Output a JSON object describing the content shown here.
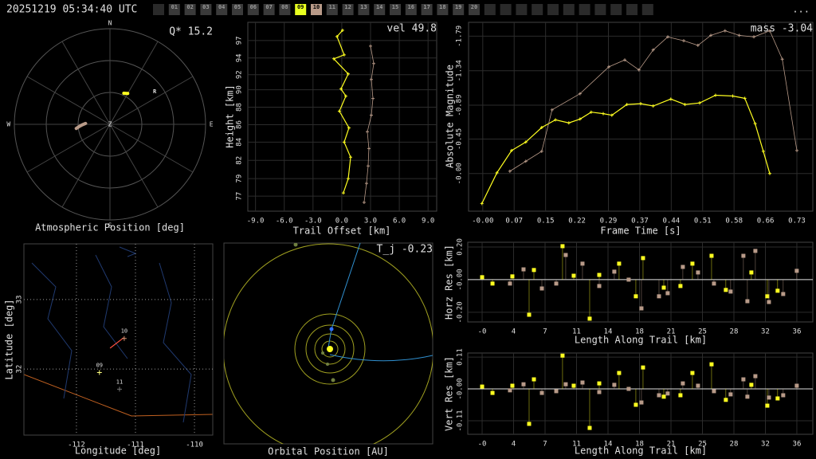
{
  "header": {
    "timestamp": "20251219 05:34:40 UTC",
    "menu": "...",
    "tabs": [
      {
        "label": "01",
        "color": "#3a3a3a"
      },
      {
        "label": "02",
        "color": "#3a3a3a"
      },
      {
        "label": "03",
        "color": "#3a3a3a"
      },
      {
        "label": "04",
        "color": "#3a3a3a"
      },
      {
        "label": "05",
        "color": "#3a3a3a"
      },
      {
        "label": "06",
        "color": "#3a3a3a"
      },
      {
        "label": "07",
        "color": "#3a3a3a"
      },
      {
        "label": "08",
        "color": "#3a3a3a"
      },
      {
        "label": "09",
        "color": "#e8ff20"
      },
      {
        "label": "10",
        "color": "#b89a88"
      },
      {
        "label": "11",
        "color": "#3a3a3a"
      },
      {
        "label": "12",
        "color": "#3a3a3a"
      },
      {
        "label": "13",
        "color": "#3a3a3a"
      },
      {
        "label": "14",
        "color": "#3a3a3a"
      },
      {
        "label": "15",
        "color": "#3a3a3a"
      },
      {
        "label": "16",
        "color": "#3a3a3a"
      },
      {
        "label": "17",
        "color": "#3a3a3a"
      },
      {
        "label": "18",
        "color": "#3a3a3a"
      },
      {
        "label": "19",
        "color": "#3a3a3a"
      },
      {
        "label": "20",
        "color": "#3a3a3a"
      }
    ]
  },
  "chart_data": [
    {
      "type": "polar",
      "title": "Atmospheric Position [deg]",
      "annotation": "Q* 15.2",
      "rlim": [
        0,
        90
      ],
      "rgrid": [
        30,
        60,
        90
      ],
      "direction_labels": [
        {
          "value": 0,
          "label": "N"
        },
        {
          "value": 90,
          "label": "E"
        },
        {
          "value": 180,
          "label": "S"
        },
        {
          "value": 270,
          "label": "W"
        }
      ],
      "center_label": "Z",
      "series": [
        {
          "color": "#ffff20",
          "azimuth": [
            24,
            26,
            28,
            30
          ],
          "zenith_angle": [
            32,
            32.5,
            33,
            33.5
          ]
        },
        {
          "color": "#b89a88",
          "azimuth": [
            263,
            266,
            269,
            272
          ],
          "zenith_angle": [
            32,
            29,
            26,
            23
          ]
        }
      ],
      "points": [
        {
          "label": "R",
          "azimuth": 54,
          "zenith_angle": 52
        }
      ]
    },
    {
      "type": "line",
      "xlabel": "Trail Offset [km]",
      "ylabel": "Height [km]",
      "annotation": "vel 49.8",
      "grid": true,
      "xlim": [
        -9.8,
        9.9
      ],
      "ylim": [
        75.1,
        98.9
      ],
      "xticks": [
        {
          "value": -9,
          "label": "-9.0"
        },
        {
          "value": -6,
          "label": "-6.0"
        },
        {
          "value": -3,
          "label": "-3.0"
        },
        {
          "value": 0,
          "label": "0.0"
        },
        {
          "value": 3,
          "label": "3.0"
        },
        {
          "value": 6,
          "label": "6.0"
        },
        {
          "value": 9,
          "label": "9.0"
        }
      ],
      "yticks": [
        77,
        {
          "value": 79.2,
          "label": "79"
        },
        {
          "value": 81.5,
          "label": "82"
        },
        {
          "value": 83.8,
          "label": "84"
        },
        {
          "value": 86.0,
          "label": "86"
        },
        {
          "value": 88.2,
          "label": "88"
        },
        {
          "value": 90.4,
          "label": "90"
        },
        {
          "value": 92.3,
          "label": "92"
        },
        {
          "value": 94.4,
          "label": "94"
        },
        {
          "value": 96.6,
          "label": "97"
        }
      ],
      "series": [
        {
          "color": "#ffff20",
          "x": [
            0.17,
            0.67,
            0.92,
            0.25,
            0.75,
            -0.25,
            0.42,
            -0.08,
            0.67,
            -0.83,
            0.25,
            -0.5,
            0.08
          ],
          "values": [
            77.4,
            79.2,
            81.9,
            83.8,
            85.6,
            87.7,
            89.6,
            90.5,
            92.4,
            94.3,
            94.8,
            97.1,
            97.9
          ]
        },
        {
          "color": "#b89a88",
          "x": [
            2.33,
            2.58,
            2.75,
            2.83,
            2.67,
            3.08,
            3.25,
            3.08,
            3.33,
            3.0
          ],
          "values": [
            76.2,
            78.6,
            80.8,
            83.0,
            85.1,
            87.2,
            89.3,
            91.7,
            93.7,
            95.9
          ]
        }
      ]
    },
    {
      "type": "line",
      "xlabel": "Frame Time [s]",
      "ylabel": "Absolute Magnitude",
      "annotation": "mass -3.04",
      "grid": true,
      "xlim": [
        -0.033,
        0.767
      ],
      "ylim": [
        0.49,
        -1.97
      ],
      "xticks": [
        {
          "value": 0,
          "label": "-0.00"
        },
        {
          "value": 0.073,
          "label": "0.07"
        },
        {
          "value": 0.146,
          "label": "0.15"
        },
        {
          "value": 0.219,
          "label": "0.22"
        },
        {
          "value": 0.292,
          "label": "0.29"
        },
        {
          "value": 0.365,
          "label": "0.37"
        },
        {
          "value": 0.438,
          "label": "0.44"
        },
        {
          "value": 0.511,
          "label": "0.51"
        },
        {
          "value": 0.584,
          "label": "0.58"
        },
        {
          "value": 0.657,
          "label": "0.66"
        },
        0.73
      ],
      "yticks": [
        -1.79,
        -1.34,
        -0.89,
        -0.45,
        {
          "value": 0,
          "label": "-0.00"
        }
      ],
      "series": [
        {
          "color": "#ffff20",
          "x": [
            -0.002,
            0.033,
            0.067,
            0.1,
            0.137,
            0.169,
            0.2,
            0.226,
            0.252,
            0.28,
            0.3,
            0.335,
            0.367,
            0.396,
            0.437,
            0.47,
            0.504,
            0.541,
            0.581,
            0.609,
            0.633,
            0.652,
            0.667
          ],
          "values": [
            0.39,
            -0.01,
            -0.3,
            -0.41,
            -0.6,
            -0.7,
            -0.66,
            -0.71,
            -0.8,
            -0.78,
            -0.76,
            -0.9,
            -0.91,
            -0.88,
            -0.97,
            -0.9,
            -0.92,
            -1.02,
            -1.01,
            -0.98,
            -0.65,
            -0.29,
            0
          ]
        },
        {
          "color": "#b89a88",
          "x": [
            0.063,
            0.1,
            0.137,
            0.161,
            0.226,
            0.293,
            0.33,
            0.363,
            0.396,
            0.43,
            0.467,
            0.5,
            0.53,
            0.563,
            0.596,
            0.63,
            0.667,
            0.696,
            0.73
          ],
          "values": [
            -0.03,
            -0.16,
            -0.29,
            -0.83,
            -1.04,
            -1.39,
            -1.48,
            -1.35,
            -1.61,
            -1.78,
            -1.73,
            -1.67,
            -1.8,
            -1.86,
            -1.8,
            -1.78,
            -1.86,
            -1.49,
            -0.3
          ]
        }
      ]
    },
    {
      "type": "map",
      "xlabel": "Longitude [deg]",
      "ylabel": "Latitude [deg]",
      "grid": true,
      "grid_style": "dotted",
      "xlim": [
        -112.89,
        -109.69
      ],
      "ylim": [
        31.05,
        33.8
      ],
      "xticks": [
        -112,
        -111,
        -110
      ],
      "yticks": [
        32,
        33
      ],
      "stations": [
        {
          "label": "09",
          "lon": -111.61,
          "lat": 31.95,
          "color": "#ffff80"
        },
        {
          "label": "10",
          "lon": -111.19,
          "lat": 32.44,
          "color": "#d09070"
        },
        {
          "label": "11",
          "lon": -111.27,
          "lat": 31.71,
          "color": "#777777"
        }
      ],
      "trail": {
        "color": "#ff5040",
        "lon": [
          -111.2,
          -111.43
        ],
        "lat": [
          32.45,
          32.3
        ]
      }
    },
    {
      "type": "orbit",
      "xlabel": "Orbital Position [AU]",
      "annotation": "T_j -0.23"
    },
    {
      "type": "stem",
      "xlabel": "Length Along Trail [km]",
      "ylabel": "Horz Res [km]",
      "grid": true,
      "xlim": [
        -1.62,
        37.3
      ],
      "ylim": [
        -0.259,
        0.229
      ],
      "xticks": [
        {
          "value": 0,
          "label": "-0"
        },
        {
          "value": 3.55,
          "label": "4"
        },
        {
          "value": 7.1,
          "label": "7"
        },
        {
          "value": 10.65,
          "label": "11"
        },
        {
          "value": 14.2,
          "label": "14"
        },
        {
          "value": 17.75,
          "label": "18"
        },
        {
          "value": 21.3,
          "label": "21"
        },
        {
          "value": 24.85,
          "label": "25"
        },
        {
          "value": 28.4,
          "label": "28"
        },
        {
          "value": 31.95,
          "label": "32"
        },
        {
          "value": 35.5,
          "label": "36"
        }
      ],
      "yticks": [
        {
          "value": 0.2,
          "label": "0.20"
        },
        {
          "value": 0,
          "label": "-0.00"
        },
        {
          "value": -0.2,
          "label": "-0.20"
        }
      ],
      "series": [
        {
          "color": "#ffff20",
          "x": [
            0,
            1.17,
            3.41,
            5.3,
            5.84,
            9.07,
            10.33,
            12.13,
            13.21,
            15.45,
            17.34,
            18.15,
            20.49,
            22.37,
            23.72,
            25.88,
            27.49,
            30.37,
            32.17,
            33.33
          ],
          "values": [
            0.015,
            -0.024,
            0.02,
            -0.215,
            0.059,
            0.205,
            0.024,
            -0.239,
            0.029,
            0.098,
            -0.102,
            0.132,
            -0.049,
            -0.039,
            0.098,
            0.146,
            -0.063,
            0.044,
            -0.102,
            -0.068
          ]
        },
        {
          "color": "#b89a88",
          "x": [
            3.14,
            4.67,
            6.74,
            8.36,
            9.43,
            11.32,
            13.21,
            14.91,
            16.53,
            17.97,
            19.95,
            20.93,
            22.64,
            24.35,
            26.15,
            28.03,
            29.47,
            29.92,
            30.82,
            32.35,
            33.96,
            35.49
          ],
          "values": [
            -0.024,
            0.063,
            -0.054,
            -0.024,
            0.151,
            0.098,
            -0.039,
            0.049,
            0,
            -0.176,
            -0.102,
            -0.083,
            0.078,
            0.044,
            -0.024,
            -0.073,
            0.146,
            -0.132,
            0.176,
            -0.137,
            -0.088,
            0.054
          ]
        }
      ]
    },
    {
      "type": "stem",
      "xlabel": "Length Along Trail [km]",
      "ylabel": "Vert Res [km]",
      "grid": true,
      "xlim": [
        -1.62,
        37.3
      ],
      "ylim": [
        -0.157,
        0.124
      ],
      "xticks": [
        {
          "value": 0,
          "label": "-0"
        },
        {
          "value": 3.55,
          "label": "4"
        },
        {
          "value": 7.1,
          "label": "7"
        },
        {
          "value": 10.65,
          "label": "11"
        },
        {
          "value": 14.2,
          "label": "14"
        },
        {
          "value": 17.75,
          "label": "18"
        },
        {
          "value": 21.3,
          "label": "21"
        },
        {
          "value": 24.85,
          "label": "25"
        },
        {
          "value": 28.4,
          "label": "28"
        },
        {
          "value": 31.95,
          "label": "32"
        },
        {
          "value": 35.5,
          "label": "36"
        }
      ],
      "yticks": [
        0.11,
        {
          "value": 0,
          "label": "-0.00"
        },
        -0.11
      ],
      "series": [
        {
          "color": "#ffff20",
          "x": [
            0,
            1.17,
            3.41,
            5.3,
            5.84,
            9.07,
            10.33,
            12.13,
            13.21,
            15.45,
            17.34,
            18.15,
            20.49,
            22.37,
            23.72,
            25.88,
            27.49,
            30.37,
            32.17,
            33.33
          ],
          "values": [
            0.008,
            -0.014,
            0.011,
            -0.121,
            0.033,
            0.115,
            0.011,
            -0.135,
            0.019,
            0.055,
            -0.055,
            0.074,
            -0.027,
            -0.022,
            0.055,
            0.085,
            -0.038,
            0.014,
            -0.058,
            -0.033
          ]
        },
        {
          "color": "#b89a88",
          "x": [
            3.14,
            4.67,
            6.74,
            8.36,
            9.43,
            11.32,
            13.21,
            14.91,
            16.53,
            17.97,
            19.95,
            20.93,
            22.64,
            24.35,
            26.15,
            28.03,
            29.47,
            29.92,
            30.82,
            32.35,
            33.96,
            35.49
          ],
          "values": [
            -0.005,
            0.016,
            -0.014,
            -0.008,
            0.016,
            0.022,
            -0.011,
            0.014,
            0,
            -0.047,
            -0.022,
            -0.016,
            0.019,
            0.011,
            -0.008,
            -0.019,
            0.033,
            -0.027,
            0.044,
            -0.03,
            -0.022,
            0.011
          ]
        }
      ]
    }
  ]
}
